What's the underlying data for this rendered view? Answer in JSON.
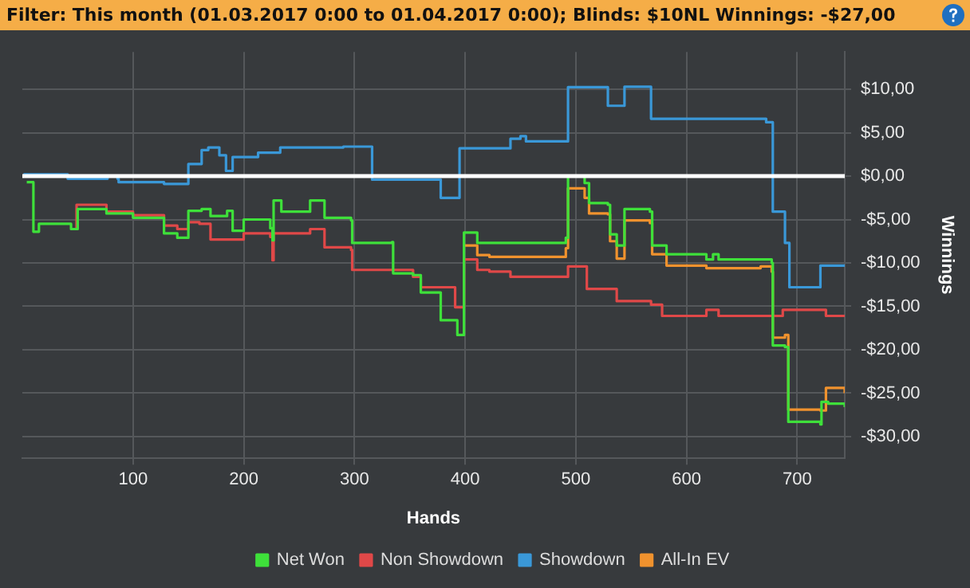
{
  "chart_data": {
    "type": "step",
    "title": "Filter: This month (01.03.2017 0:00 to 01.04.2017 0:00); Blinds: $10NL Winnings: -$27,00",
    "xlabel": "Hands",
    "ylabel": "Winnings",
    "xlim": [
      0,
      743
    ],
    "xticks": [
      100,
      200,
      300,
      400,
      500,
      600,
      700
    ],
    "ylim": [
      -32.5,
      14.3
    ],
    "yticks": [
      {
        "value": -30,
        "label": "-$30,00"
      },
      {
        "value": -25,
        "label": "-$25,00"
      },
      {
        "value": -20,
        "label": "-$20,00"
      },
      {
        "value": -15,
        "label": "-$15,00"
      },
      {
        "value": -10,
        "label": "-$10,00"
      },
      {
        "value": -5,
        "label": "-$5,00"
      },
      {
        "value": 0,
        "label": "$0,00"
      },
      {
        "value": 5,
        "label": "$5,00"
      },
      {
        "value": 10,
        "label": "$10,00"
      }
    ],
    "grid": true,
    "legend": "bottom",
    "ref_lines": [
      {
        "axis": "y",
        "value": 0,
        "color": "#ffffff"
      }
    ],
    "series": [
      {
        "name": "Net Won",
        "color": "#3ee03a",
        "x": [
          4,
          10,
          15,
          44,
          50,
          76,
          100,
          128,
          140,
          150,
          162,
          170,
          185,
          190,
          200,
          224,
          226,
          227,
          234,
          260,
          273,
          297,
          298,
          334,
          335,
          353,
          360,
          378,
          393,
          398,
          399,
          411,
          422,
          491,
          493,
          508,
          512,
          529,
          531,
          537,
          544,
          567,
          569,
          582,
          618,
          624,
          629,
          667,
          677,
          678,
          689,
          692,
          721,
          722,
          728,
          743
        ],
        "values": [
          -0.7,
          -6.4,
          -5.5,
          -6.1,
          -3.8,
          -4.3,
          -4.8,
          -6.6,
          -7.1,
          -4.0,
          -3.8,
          -4.6,
          -4.0,
          -6.3,
          -5.0,
          -6.0,
          -7.4,
          -2.8,
          -4.1,
          -2.8,
          -4.8,
          -5.1,
          -7.7,
          -7.6,
          -11.2,
          -11.4,
          -13.4,
          -16.6,
          -18.3,
          -18.3,
          -6.5,
          -7.7,
          -7.7,
          -7.1,
          0,
          -0.8,
          -3.1,
          -3.3,
          -6.7,
          -8.0,
          -3.8,
          -4.1,
          -8.0,
          -9.0,
          -9.6,
          -9.0,
          -9.6,
          -9.6,
          -10.0,
          -19.5,
          -19.7,
          -28.3,
          -28.6,
          -26.0,
          -26.2,
          -26.6
        ]
      },
      {
        "name": "Non Showdown",
        "color": "#e04848",
        "x": [
          44,
          49,
          76,
          100,
          128,
          140,
          150,
          160,
          170,
          200,
          224,
          226,
          227,
          260,
          273,
          297,
          298,
          353,
          360,
          391,
          398,
          399,
          411,
          422,
          441,
          493,
          510,
          537,
          568,
          578,
          618,
          629,
          687,
          726,
          743
        ],
        "values": [
          -6.1,
          -3.3,
          -4.1,
          -4.5,
          -5.7,
          -6.1,
          -5.3,
          -5.5,
          -7.3,
          -6.6,
          -7.0,
          -9.7,
          -6.6,
          -6.1,
          -8.2,
          -8.5,
          -10.8,
          -11.6,
          -12.8,
          -15.1,
          -15.1,
          -9.6,
          -10.8,
          -11.0,
          -11.6,
          -10.4,
          -13.0,
          -14.4,
          -14.8,
          -16.1,
          -15.4,
          -16.1,
          -15.4,
          -16.1,
          -16.2
        ]
      },
      {
        "name": "Showdown",
        "color": "#3a98d8",
        "x": [
          1,
          40,
          41,
          76,
          77,
          86,
          87,
          128,
          150,
          162,
          168,
          178,
          184,
          186,
          190,
          213,
          233,
          290,
          315,
          316,
          377,
          378,
          395,
          422,
          441,
          450,
          455,
          493,
          529,
          543,
          544,
          568,
          672,
          678,
          689,
          693,
          721,
          743
        ],
        "values": [
          0.2,
          0.2,
          -0.3,
          -0.3,
          0,
          -0.3,
          -0.7,
          -0.9,
          1.4,
          3.0,
          3.3,
          2.4,
          0.6,
          0.6,
          2.2,
          2.7,
          3.3,
          3.4,
          3.4,
          -0.4,
          -0.4,
          -2.5,
          3.2,
          3.2,
          4.3,
          4.6,
          4.0,
          10.25,
          8.1,
          8.1,
          10.3,
          6.6,
          6.2,
          -4.1,
          -7.7,
          -12.8,
          -10.3,
          -10.3
        ]
      },
      {
        "name": "All-In EV",
        "color": "#f0922e",
        "x": [
          399,
          411,
          422,
          491,
          493,
          508,
          512,
          529,
          531,
          537,
          544,
          567,
          569,
          582,
          618,
          667,
          677,
          678,
          689,
          692,
          721,
          726,
          743
        ],
        "values": [
          -8.0,
          -9.1,
          -9.3,
          -8.3,
          -1.4,
          -2.5,
          -4.3,
          -4.4,
          -7.5,
          -9.5,
          -5.1,
          -5.4,
          -9.0,
          -10.3,
          -10.6,
          -10.4,
          -11.0,
          -18.6,
          -18.3,
          -26.9,
          -27.0,
          -24.4,
          -25.0
        ]
      }
    ]
  }
}
